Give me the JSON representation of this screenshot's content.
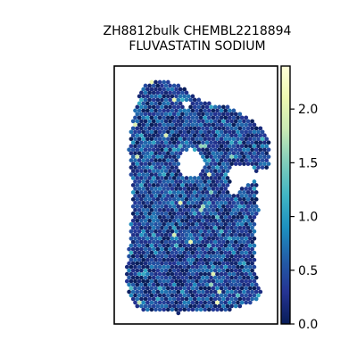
{
  "chart_data": {
    "type": "heatmap",
    "title_lines": [
      "ZH8812bulk CHEMBL2218894",
      "FLUVASTATIN SODIUM"
    ],
    "xlabel": "",
    "ylabel": "",
    "colorbar": {
      "colormap": "YlGnBu",
      "range": [
        0.0,
        2.4
      ],
      "ticks": [
        0.0,
        0.5,
        1.0,
        1.5,
        2.0
      ],
      "tick_labels": [
        "0.0",
        "0.5",
        "1.0",
        "1.5",
        "2.0"
      ]
    },
    "grid": false,
    "spot_value_distribution": {
      "typical_range": [
        0.0,
        0.8
      ],
      "max_approx": 2.2
    }
  }
}
